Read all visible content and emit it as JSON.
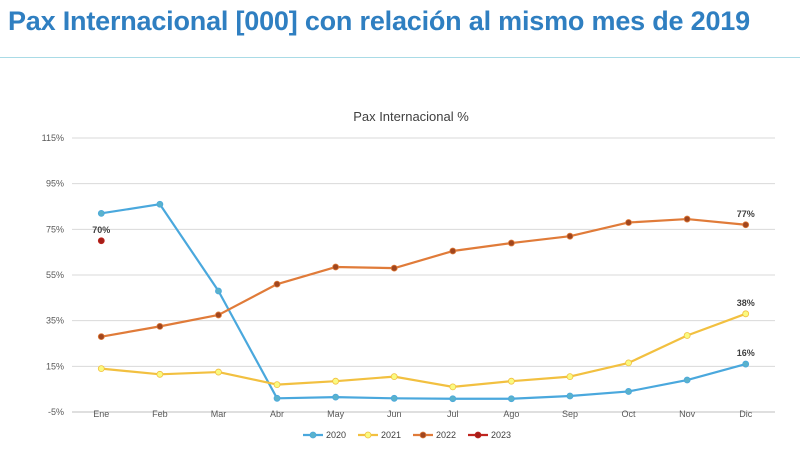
{
  "page": {
    "title": "Pax Internacional [000] con relación al mismo mes de 2019"
  },
  "chart_data": {
    "type": "line",
    "title": "Pax Internacional %",
    "xlabel": "",
    "ylabel": "",
    "categories": [
      "Ene",
      "Feb",
      "Mar",
      "Abr",
      "May",
      "Jun",
      "Jul",
      "Ago",
      "Sep",
      "Oct",
      "Nov",
      "Dic"
    ],
    "ylim": [
      -5,
      115
    ],
    "yticks": [
      -5,
      15,
      35,
      55,
      75,
      95,
      115
    ],
    "ytick_labels": [
      "-5%",
      "15%",
      "35%",
      "55%",
      "75%",
      "95%",
      "115%"
    ],
    "grid": true,
    "legend_position": "bottom",
    "series": [
      {
        "name": "2020",
        "color": "#4aa8dd",
        "marker_fill": "#5ab2cc",
        "values": [
          82,
          86,
          48,
          1,
          1.5,
          1,
          0.8,
          0.8,
          2,
          4,
          9,
          16
        ],
        "labels": [
          {
            "index": 11,
            "text": "16%"
          }
        ]
      },
      {
        "name": "2021",
        "color": "#f2c040",
        "marker_fill": "#fafa80",
        "values": [
          14,
          11.5,
          12.5,
          7,
          8.5,
          10.5,
          6,
          8.5,
          10.5,
          16.5,
          28.5,
          38
        ],
        "labels": [
          {
            "index": 11,
            "text": "38%"
          }
        ]
      },
      {
        "name": "2022",
        "color": "#e07b39",
        "marker_fill": "#a0461e",
        "values": [
          28,
          32.5,
          37.5,
          51,
          58.5,
          58,
          65.5,
          69,
          72,
          78,
          79.5,
          77
        ],
        "labels": [
          {
            "index": 11,
            "text": "77%"
          }
        ]
      },
      {
        "name": "2023",
        "color": "#c0251f",
        "marker_fill": "#a51e18",
        "values": [
          70,
          null,
          null,
          null,
          null,
          null,
          null,
          null,
          null,
          null,
          null,
          null
        ],
        "labels": [
          {
            "index": 0,
            "text": "70%"
          }
        ]
      }
    ]
  }
}
